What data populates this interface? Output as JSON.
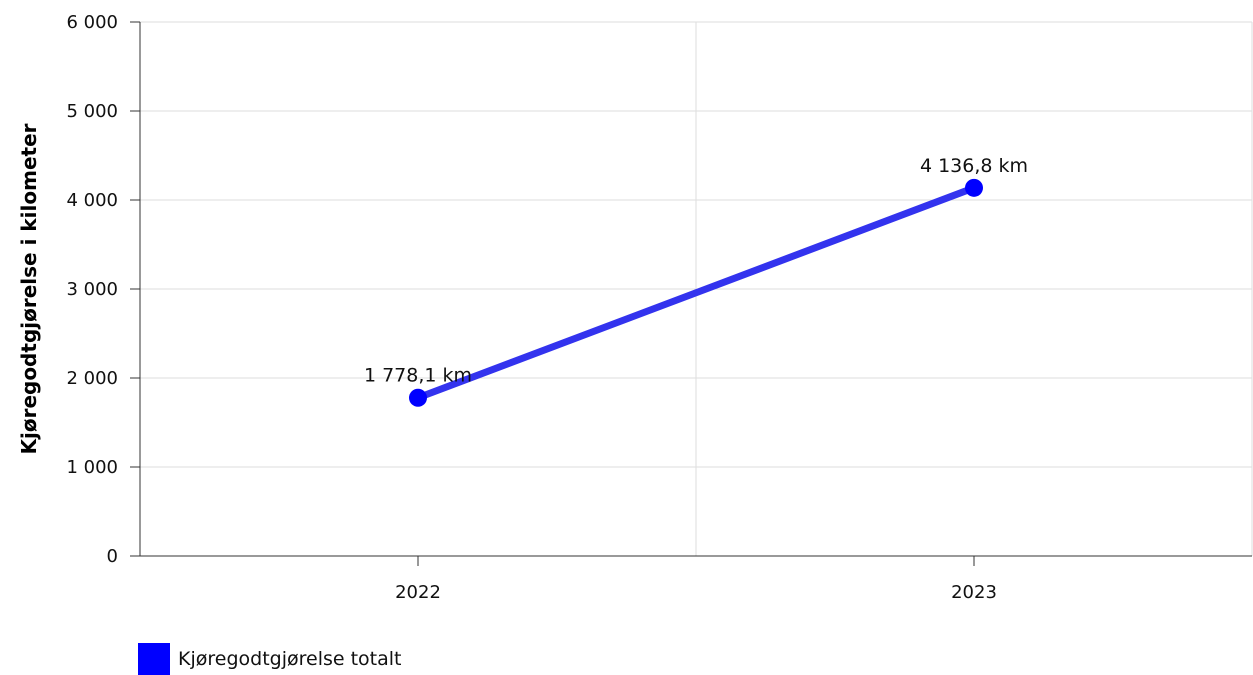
{
  "chart_data": {
    "type": "line",
    "categories": [
      "2022",
      "2023"
    ],
    "series": [
      {
        "name": "Kjøregodtgjørelse totalt",
        "values": [
          1778.1,
          4136.8
        ],
        "data_labels": [
          "1 778,1 km",
          "4 136,8 km"
        ],
        "color": "#0000ff"
      }
    ],
    "ylabel": "Kjøregodtgjørelse i kilometer",
    "xlabel": "",
    "title": "",
    "ylim": [
      0,
      6000
    ],
    "yticks": [
      0,
      1000,
      2000,
      3000,
      4000,
      5000,
      6000
    ],
    "ytick_labels": [
      "0",
      "1 000",
      "2 000",
      "3 000",
      "4 000",
      "5 000",
      "6 000"
    ],
    "grid": true,
    "legend_position": "bottom-left",
    "colors": {
      "line": "#3333ee",
      "marker": "#0000ff",
      "grid": "#dddddd",
      "axis": "#333333"
    }
  }
}
